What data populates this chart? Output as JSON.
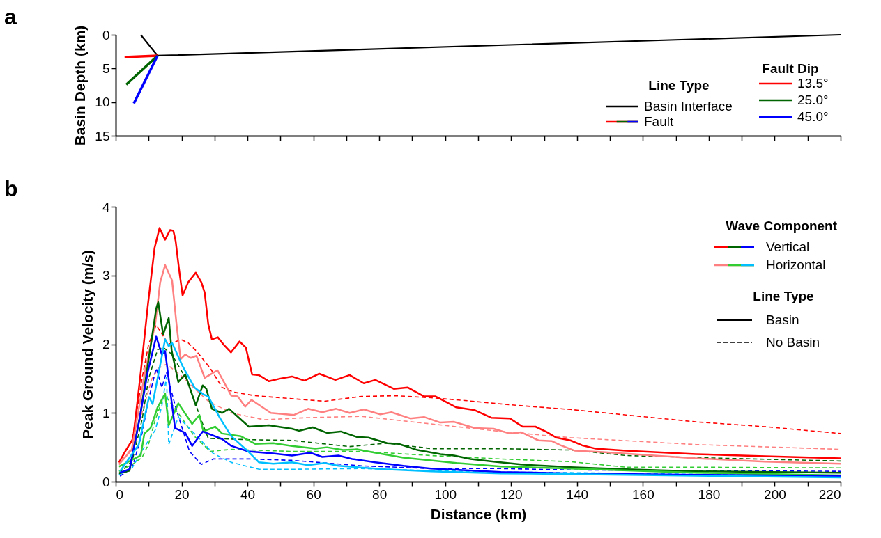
{
  "chart_data": [
    {
      "type": "line",
      "ylabel": "Basin Depth (km)",
      "legend_title": "Fault Dip",
      "legend": "bottom right",
      "tick_labels": "y",
      "annotations": [
        "a",
        "Line Type",
        "Fault"
      ],
      "xlim": [
        0,
        220
      ],
      "xticks": [
        0,
        10,
        20,
        30,
        40,
        50,
        60,
        70,
        80,
        90,
        100,
        110,
        120,
        130,
        140,
        150,
        160,
        170,
        180,
        190,
        200,
        210,
        220
      ],
      "ylim": [
        15,
        0
      ],
      "yticks": [
        0,
        5,
        10,
        15
      ],
      "series": [
        {
          "name": "Basin Interface",
          "color": "#000000",
          "line_style": "solid",
          "x": [
            7.6,
            12.7,
            220
          ],
          "values": [
            0,
            3.1,
            0
          ]
        },
        {
          "name": "13.5°",
          "color": "#ff0000",
          "line_style": "solid",
          "x": [
            2.7,
            12.7
          ],
          "values": [
            3.3,
            3.1
          ]
        },
        {
          "name": "25.0°",
          "color": "#006400",
          "line_style": "solid",
          "x": [
            3.2,
            12.7
          ],
          "values": [
            7.4,
            3.1
          ]
        },
        {
          "name": "45.0°",
          "color": "#0000ff",
          "line_style": "solid",
          "x": [
            5.5,
            12.7
          ],
          "values": [
            10.2,
            3.1
          ]
        }
      ]
    },
    {
      "type": "line",
      "xlabel": "Distance (km)",
      "ylabel": "Peak Ground Velocity (m/s)",
      "legend_title": "Wave Component",
      "legend": "top right",
      "annotations": [
        "b",
        "Vertical",
        "Horizontal",
        "Line Type",
        "Basin",
        "No Basin"
      ],
      "xlim": [
        0,
        220
      ],
      "xticks": [
        0,
        {
          "value": 10,
          "label": null
        },
        20,
        {
          "value": 30,
          "label": null
        },
        40,
        {
          "value": 50,
          "label": null
        },
        60,
        {
          "value": 70,
          "label": null
        },
        80,
        {
          "value": 90,
          "label": null
        },
        100,
        {
          "value": 110,
          "label": null
        },
        120,
        {
          "value": 130,
          "label": null
        },
        140,
        {
          "value": 150,
          "label": null
        },
        160,
        {
          "value": 170,
          "label": null
        },
        180,
        {
          "value": 190,
          "label": null
        },
        200,
        {
          "value": 210,
          "label": null
        },
        220
      ],
      "ylim": [
        0,
        4
      ],
      "yticks": [
        0,
        1,
        2,
        3,
        4
      ],
      "series": [
        {
          "color": "#ff0000",
          "line_style": "solid",
          "x": [
            1,
            3,
            5.3,
            7.6,
            9.7,
            11.8,
            13.3,
            15,
            16.5,
            17.5,
            18.2,
            19.2,
            20.3,
            22,
            24.3,
            26,
            27,
            28.1,
            29.2,
            31,
            33,
            35,
            37.6,
            39.5,
            41.4,
            43.5,
            46.5,
            50,
            53.5,
            57.3,
            61.8,
            66.7,
            71,
            75.3,
            78.8,
            84.4,
            88.6,
            93.6,
            97.1,
            103.4,
            109,
            114,
            119.6,
            123.5,
            127.4,
            130.9,
            133.7,
            138,
            141.5,
            145.7,
            154.9,
            176,
            197,
            220
          ],
          "values": [
            0.28,
            0.45,
            0.63,
            1.59,
            2.54,
            3.4,
            3.69,
            3.52,
            3.66,
            3.65,
            3.5,
            3.1,
            2.71,
            2.9,
            3.04,
            2.9,
            2.75,
            2.29,
            2.07,
            2.1,
            1.98,
            1.88,
            2.04,
            1.95,
            1.56,
            1.55,
            1.46,
            1.5,
            1.53,
            1.47,
            1.57,
            1.48,
            1.55,
            1.43,
            1.48,
            1.35,
            1.37,
            1.24,
            1.24,
            1.08,
            1.04,
            0.93,
            0.92,
            0.8,
            0.8,
            0.72,
            0.64,
            0.6,
            0.53,
            0.48,
            0.45,
            0.4,
            0.37,
            0.34
          ]
        },
        {
          "color": "#ff0000",
          "line_style": "dashed",
          "x": [
            1,
            5,
            8,
            10,
            12.3,
            14,
            16,
            18,
            19.7,
            22,
            24.5,
            28.7,
            32.3,
            36,
            42.3,
            50,
            57.7,
            63.4,
            74.6,
            85.2,
            95.7,
            106,
            116.9,
            127,
            138,
            154.9,
            176,
            197,
            220
          ],
          "values": [
            0.28,
            0.6,
            1.5,
            2.0,
            2.28,
            2.15,
            2.0,
            2.03,
            2.07,
            2.02,
            1.9,
            1.65,
            1.37,
            1.3,
            1.25,
            1.22,
            1.19,
            1.17,
            1.24,
            1.25,
            1.22,
            1.18,
            1.13,
            1.09,
            1.05,
            0.97,
            0.87,
            0.8,
            0.7
          ]
        },
        {
          "color": "#ff8080",
          "line_style": "solid",
          "x": [
            1,
            4.9,
            9.1,
            12,
            13.5,
            15,
            17.1,
            18.6,
            19.7,
            21.1,
            22.8,
            24.5,
            27,
            30.9,
            35.1,
            37,
            39.3,
            41.2,
            47.1,
            54.1,
            58.4,
            62.7,
            66.9,
            71,
            75.3,
            80.3,
            83.7,
            89.4,
            93.6,
            98.5,
            102.7,
            109,
            114.7,
            119.6,
            123,
            128.3,
            132.3,
            135,
            139.4,
            147.8,
            176,
            197,
            220
          ],
          "values": [
            0.25,
            0.47,
            1.65,
            2.3,
            2.9,
            3.15,
            2.93,
            2.23,
            1.78,
            1.85,
            1.8,
            1.83,
            1.51,
            1.62,
            1.25,
            1.24,
            1.09,
            1.19,
            1.0,
            0.97,
            1.06,
            1.01,
            1.06,
            1.0,
            1.05,
            0.98,
            1.01,
            0.92,
            0.94,
            0.86,
            0.87,
            0.78,
            0.77,
            0.7,
            0.72,
            0.6,
            0.59,
            0.53,
            0.45,
            0.43,
            0.34,
            0.29,
            0.26
          ]
        },
        {
          "color": "#ff8080",
          "line_style": "dashed",
          "x": [
            1,
            5,
            8,
            11,
            13,
            15.4,
            19.7,
            24,
            28.1,
            35.1,
            45,
            57.7,
            74.6,
            95.7,
            116.9,
            138,
            176,
            220
          ],
          "values": [
            0.25,
            0.5,
            1.0,
            1.5,
            1.65,
            1.71,
            1.55,
            1.35,
            1.17,
            1.0,
            0.9,
            0.93,
            0.95,
            0.84,
            0.73,
            0.64,
            0.54,
            0.47
          ]
        },
        {
          "color": "#006400",
          "line_style": "solid",
          "x": [
            1,
            4.2,
            7.6,
            10.6,
            12.3,
            12.9,
            14.4,
            16.1,
            17,
            19,
            21.1,
            24.3,
            26.4,
            27.5,
            29.2,
            32.3,
            34.4,
            40.4,
            46.5,
            53.5,
            55.6,
            59.8,
            64.1,
            68.3,
            73.2,
            76.7,
            82.4,
            85.9,
            91.6,
            98.6,
            102.7,
            107.7,
            114.7,
            123,
            130.3,
            138,
            154.9,
            176,
            220
          ],
          "values": [
            0.12,
            0.16,
            1.01,
            1.97,
            2.52,
            2.61,
            2.14,
            2.38,
            1.9,
            1.45,
            1.56,
            1.11,
            1.4,
            1.35,
            1.06,
            1.0,
            1.06,
            0.8,
            0.82,
            0.77,
            0.74,
            0.79,
            0.71,
            0.73,
            0.65,
            0.64,
            0.56,
            0.55,
            0.46,
            0.4,
            0.38,
            0.33,
            0.29,
            0.25,
            0.23,
            0.21,
            0.18,
            0.15,
            0.13
          ]
        },
        {
          "color": "#006400",
          "line_style": "dashed",
          "x": [
            1,
            5,
            8,
            10,
            12.7,
            14.5,
            16.9,
            21.8,
            26,
            28.1,
            40.8,
            53.5,
            71,
            82.4,
            95.7,
            116.9,
            138,
            154.9,
            176,
            220
          ],
          "values": [
            0.12,
            0.3,
            0.9,
            1.5,
            1.92,
            1.95,
            1.86,
            1.46,
            0.89,
            0.63,
            0.61,
            0.6,
            0.51,
            0.56,
            0.48,
            0.48,
            0.46,
            0.38,
            0.35,
            0.3
          ]
        },
        {
          "color": "#32cd32",
          "line_style": "solid",
          "x": [
            1,
            7.6,
            8.7,
            10.6,
            12.7,
            15,
            16.1,
            19,
            23.2,
            25.4,
            26.6,
            30.2,
            32.3,
            38,
            42.3,
            47.8,
            53.5,
            60.6,
            64.1,
            69,
            73.2,
            78.8,
            87.3,
            95.7,
            103.4,
            116.9,
            138,
            176,
            220
          ],
          "values": [
            0.22,
            0.38,
            0.7,
            0.78,
            1.08,
            1.28,
            0.82,
            1.14,
            0.84,
            0.97,
            0.73,
            0.8,
            0.7,
            0.66,
            0.55,
            0.56,
            0.52,
            0.48,
            0.5,
            0.46,
            0.47,
            0.42,
            0.35,
            0.31,
            0.27,
            0.22,
            0.19,
            0.13,
            0.09
          ]
        },
        {
          "color": "#32cd32",
          "line_style": "dashed",
          "x": [
            1,
            5,
            8,
            10,
            12,
            14.8,
            19.7,
            23.9,
            28.7,
            35.1,
            53.5,
            74.6,
            95.7,
            116.9,
            138,
            154.9,
            176,
            220
          ],
          "values": [
            0.15,
            0.25,
            0.35,
            0.55,
            0.9,
            1.27,
            0.95,
            0.66,
            0.44,
            0.47,
            0.44,
            0.44,
            0.38,
            0.33,
            0.29,
            0.21,
            0.21,
            0.2
          ]
        },
        {
          "color": "#0000ff",
          "line_style": "solid",
          "x": [
            1.3,
            4.2,
            7,
            9.7,
            12.3,
            14,
            15,
            18,
            21.1,
            23.2,
            26.4,
            32.3,
            35.1,
            40.2,
            47.8,
            53.5,
            59.1,
            62.7,
            67.6,
            71.8,
            78.8,
            87.3,
            95.7,
            116.9,
            138,
            176,
            220
          ],
          "values": [
            0.13,
            0.18,
            0.85,
            1.59,
            2.11,
            1.85,
            1.9,
            0.78,
            0.71,
            0.52,
            0.73,
            0.62,
            0.52,
            0.44,
            0.41,
            0.38,
            0.42,
            0.36,
            0.38,
            0.33,
            0.28,
            0.23,
            0.19,
            0.14,
            0.12,
            0.1,
            0.08
          ]
        },
        {
          "color": "#0000ff",
          "line_style": "dashed",
          "x": [
            1.3,
            5,
            8,
            10,
            12.3,
            14,
            15.4,
            18.2,
            22.4,
            26,
            29.6,
            40.8,
            53.5,
            74.6,
            95.7,
            116.9,
            138,
            220
          ],
          "values": [
            0.08,
            0.2,
            0.7,
            1.2,
            1.65,
            1.37,
            1.59,
            1.08,
            0.44,
            0.25,
            0.33,
            0.33,
            0.31,
            0.23,
            0.19,
            0.19,
            0.17,
            0.15
          ]
        },
        {
          "color": "#00bfff",
          "line_style": "solid",
          "x": [
            1.3,
            7,
            10.1,
            11.2,
            15,
            16.1,
            17.1,
            20.3,
            23.9,
            26.6,
            28.1,
            31.7,
            35.1,
            40.2,
            43.5,
            47.8,
            53.5,
            58.4,
            63.4,
            67.6,
            81.7,
            95.7,
            116.9,
            138,
            220
          ],
          "values": [
            0.15,
            0.54,
            1.23,
            1.13,
            2.07,
            1.97,
            2.02,
            1.68,
            1.37,
            1.27,
            1.24,
            0.92,
            0.66,
            0.44,
            0.28,
            0.26,
            0.28,
            0.24,
            0.27,
            0.23,
            0.18,
            0.15,
            0.12,
            0.11,
            0.06
          ]
        },
        {
          "color": "#00bfff",
          "line_style": "dashed",
          "x": [
            1,
            5,
            8,
            10,
            12,
            14,
            15.4,
            16.1,
            19,
            23.9,
            29.6,
            35.1,
            43.5,
            53.5,
            74.6,
            95.7,
            116.9,
            138,
            220
          ],
          "values": [
            0.1,
            0.2,
            0.45,
            0.6,
            0.75,
            1.1,
            1.52,
            0.54,
            0.94,
            0.7,
            0.41,
            0.28,
            0.18,
            0.18,
            0.19,
            0.16,
            0.14,
            0.13,
            0.08
          ]
        }
      ]
    }
  ]
}
